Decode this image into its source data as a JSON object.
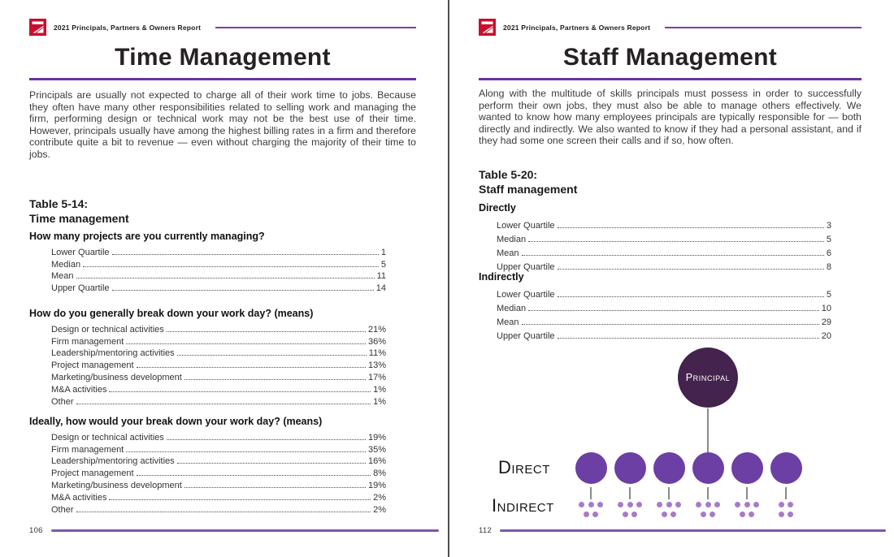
{
  "header": {
    "report_title": "2021 Principals, Partners & Owners Report",
    "logo_icon": "zweig-z-logo",
    "accent_red": "#C8102E",
    "accent_purple": "#6733A0"
  },
  "left_page": {
    "title": "Time Management",
    "intro": "Principals are usually not expected to charge all of their work time to jobs. Because they often have many other responsibilities related to selling work and managing the firm, performing design or technical work may not be the best use of their time. However, principals usually have among the highest billing rates in a firm and therefore contribute quite a bit to revenue — even without charging the majority of their time to jobs.",
    "table_label": "Table 5-14:",
    "table_name": "Time management",
    "sections": [
      {
        "heading": "How many projects are you currently managing?",
        "rows": [
          {
            "label": "Lower Quartile",
            "value": "1"
          },
          {
            "label": "Median",
            "value": "5"
          },
          {
            "label": "Mean",
            "value": "11"
          },
          {
            "label": "Upper Quartile",
            "value": "14"
          }
        ]
      },
      {
        "heading": "How do you generally break down your work day? (means)",
        "rows": [
          {
            "label": "Design or technical activities",
            "value": "21%"
          },
          {
            "label": "Firm management",
            "value": "36%"
          },
          {
            "label": "Leadership/mentoring activities",
            "value": "11%"
          },
          {
            "label": "Project management",
            "value": "13%"
          },
          {
            "label": "Marketing/business development",
            "value": "17%"
          },
          {
            "label": "M&A activities",
            "value": "1%"
          },
          {
            "label": "Other",
            "value": "1%"
          }
        ]
      },
      {
        "heading": "Ideally, how would your break down your work day? (means)",
        "rows": [
          {
            "label": "Design or technical activities",
            "value": "19%"
          },
          {
            "label": "Firm management",
            "value": "35%"
          },
          {
            "label": "Leadership/mentoring activities",
            "value": "16%"
          },
          {
            "label": "Project management",
            "value": "8%"
          },
          {
            "label": "Marketing/business development",
            "value": "19%"
          },
          {
            "label": "M&A activities",
            "value": "2%"
          },
          {
            "label": "Other",
            "value": "2%"
          }
        ]
      }
    ],
    "page_number": "106"
  },
  "right_page": {
    "title": "Staff Management",
    "intro": "Along with the multitude of skills principals must possess in order to successfully perform their own jobs, they must also be able to manage others effectively. We wanted to know how many employees principals are typically responsible for — both directly and indirectly. We also wanted to know if they had a personal assistant, and if they had some one screen their calls and if so, how often.",
    "table_label": "Table 5-20:",
    "table_name": "Staff management",
    "sections": [
      {
        "heading": "Directly",
        "rows": [
          {
            "label": "Lower Quartile",
            "value": "3"
          },
          {
            "label": "Median",
            "value": "5"
          },
          {
            "label": "Mean",
            "value": "6"
          },
          {
            "label": "Upper Quartile",
            "value": "8"
          }
        ]
      },
      {
        "heading": "Indirectly",
        "rows": [
          {
            "label": "Lower Quartile",
            "value": "5"
          },
          {
            "label": "Median",
            "value": "10"
          },
          {
            "label": "Mean",
            "value": "29"
          },
          {
            "label": "Upper Quartile",
            "value": "20"
          }
        ]
      }
    ],
    "diagram": {
      "principal_label": "Principal",
      "direct_label": "Direct",
      "indirect_label": "Indirect",
      "direct_count": 6,
      "indirect_dot_groups": [
        [
          3,
          2
        ],
        [
          3,
          2
        ],
        [
          3,
          2
        ],
        [
          3,
          2
        ],
        [
          3,
          2
        ],
        [
          2,
          2
        ]
      ],
      "colors": {
        "principal": "#44234E",
        "direct": "#6B3FA3",
        "indirect_dots": "#A77BC9",
        "connector": "#8A8A8A"
      }
    },
    "page_number": "112"
  }
}
